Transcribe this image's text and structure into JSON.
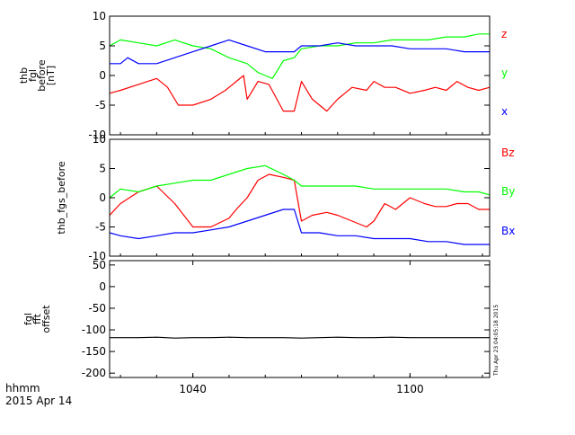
{
  "chart_data": [
    {
      "type": "line",
      "ylabel_lines": [
        "thb",
        "fgl",
        "before",
        "[nT]"
      ],
      "ylim": [
        -10,
        10
      ],
      "yticks": [
        10,
        5,
        0,
        -5,
        -10
      ],
      "xlim": [
        1017,
        1122
      ],
      "series": [
        {
          "name": "z",
          "color": "#ff0000",
          "x": [
            1017,
            1020,
            1025,
            1030,
            1033,
            1036,
            1040,
            1045,
            1049,
            1052,
            1054,
            1055,
            1058,
            1061,
            1065,
            1068,
            1070,
            1073,
            1077,
            1080,
            1084,
            1088,
            1090,
            1093,
            1096,
            1100,
            1104,
            1107,
            1110,
            1113,
            1116,
            1119,
            1122
          ],
          "y": [
            -3,
            -2.5,
            -1.5,
            -0.5,
            -2,
            -5,
            -5,
            -4,
            -2.5,
            -1,
            0,
            -4,
            -1,
            -1.5,
            -6,
            -6,
            -1,
            -4,
            -6,
            -4,
            -2,
            -2.5,
            -1,
            -2,
            -2,
            -3,
            -2.5,
            -2,
            -2.5,
            -1,
            -2,
            -2.5,
            -2
          ]
        },
        {
          "name": "y",
          "color": "#00ff00",
          "x": [
            1017,
            1020,
            1025,
            1030,
            1035,
            1040,
            1045,
            1050,
            1055,
            1058,
            1060,
            1062,
            1065,
            1068,
            1070,
            1075,
            1080,
            1085,
            1090,
            1095,
            1100,
            1105,
            1110,
            1115,
            1119,
            1122
          ],
          "y": [
            5,
            6,
            5.5,
            5,
            6,
            5,
            4.5,
            3,
            2,
            0.5,
            0,
            -0.5,
            2.5,
            3,
            4.5,
            5,
            5,
            5.5,
            5.5,
            6,
            6,
            6,
            6.5,
            6.5,
            7,
            7
          ]
        },
        {
          "name": "x",
          "color": "#0000ff",
          "x": [
            1017,
            1020,
            1022,
            1025,
            1030,
            1035,
            1040,
            1045,
            1050,
            1055,
            1060,
            1065,
            1068,
            1070,
            1075,
            1080,
            1085,
            1090,
            1095,
            1100,
            1105,
            1110,
            1115,
            1119,
            1122
          ],
          "y": [
            2,
            2,
            3,
            2,
            2,
            3,
            4,
            5,
            6,
            5,
            4,
            4,
            4,
            5,
            5,
            5.5,
            5,
            5,
            5,
            4.5,
            4.5,
            4.5,
            4,
            4,
            4
          ]
        }
      ]
    },
    {
      "type": "line",
      "ylabel_lines": [
        "thb_fgs_before"
      ],
      "ylim": [
        -10,
        10
      ],
      "yticks": [
        10,
        5,
        0,
        -5,
        -10
      ],
      "xlim": [
        1017,
        1122
      ],
      "series": [
        {
          "name": "Bz",
          "color": "#ff0000",
          "x": [
            1017,
            1020,
            1025,
            1030,
            1035,
            1040,
            1045,
            1050,
            1052,
            1055,
            1058,
            1061,
            1065,
            1068,
            1070,
            1073,
            1077,
            1080,
            1084,
            1088,
            1090,
            1093,
            1096,
            1100,
            1104,
            1107,
            1110,
            1113,
            1116,
            1119,
            1122
          ],
          "y": [
            -3,
            -1,
            1,
            2,
            -1,
            -5,
            -5,
            -3.5,
            -2,
            0,
            3,
            4,
            3.5,
            3,
            -4,
            -3,
            -2.5,
            -3,
            -4,
            -5,
            -4,
            -1,
            -2,
            0,
            -1,
            -1.5,
            -1.5,
            -1,
            -1,
            -2,
            -2
          ]
        },
        {
          "name": "By",
          "color": "#00ff00",
          "x": [
            1017,
            1020,
            1025,
            1030,
            1035,
            1040,
            1045,
            1050,
            1055,
            1060,
            1065,
            1068,
            1070,
            1075,
            1080,
            1085,
            1090,
            1095,
            1100,
            1105,
            1110,
            1115,
            1119,
            1122
          ],
          "y": [
            0,
            1.5,
            1,
            2,
            2.5,
            3,
            3,
            4,
            5,
            5.5,
            4,
            3,
            2,
            2,
            2,
            2,
            1.5,
            1.5,
            1.5,
            1.5,
            1.5,
            1,
            1,
            0.5
          ]
        },
        {
          "name": "Bx",
          "color": "#0000ff",
          "x": [
            1017,
            1020,
            1025,
            1030,
            1035,
            1040,
            1045,
            1050,
            1055,
            1060,
            1065,
            1068,
            1070,
            1075,
            1080,
            1085,
            1090,
            1095,
            1100,
            1105,
            1110,
            1115,
            1119,
            1122
          ],
          "y": [
            -6,
            -6.5,
            -7,
            -6.5,
            -6,
            -6,
            -5.5,
            -5,
            -4,
            -3,
            -2,
            -2,
            -6,
            -6,
            -6.5,
            -6.5,
            -7,
            -7,
            -7,
            -7.5,
            -7.5,
            -8,
            -8,
            -8
          ]
        }
      ]
    },
    {
      "type": "line",
      "ylabel_lines": [
        "fgl",
        "fft",
        "offset"
      ],
      "ylim": [
        -210,
        60
      ],
      "yticks": [
        50,
        0,
        -50,
        -100,
        -150,
        -200
      ],
      "xlim": [
        1017,
        1122
      ],
      "xticks": [
        1040,
        1100
      ],
      "series": [
        {
          "name": "",
          "color": "#000000",
          "x": [
            1017,
            1025,
            1030,
            1035,
            1040,
            1045,
            1050,
            1055,
            1060,
            1065,
            1070,
            1075,
            1080,
            1085,
            1090,
            1095,
            1100,
            1105,
            1110,
            1115,
            1119,
            1122
          ],
          "y": [
            -118,
            -118,
            -117,
            -119,
            -118,
            -118,
            -117,
            -118,
            -118,
            -118,
            -119,
            -118,
            -117,
            -118,
            -118,
            -117,
            -118,
            -118,
            -118,
            -118,
            -118,
            -118
          ]
        }
      ]
    }
  ],
  "xtick_labels": [
    "1040",
    "1100"
  ],
  "footer": {
    "time_format": "hhmm",
    "date": "2015 Apr 14"
  },
  "sidebar_stamp": "Thu Apr 23 04:05:18 2015",
  "colors": {
    "axis": "#000000",
    "background": "#ffffff"
  }
}
